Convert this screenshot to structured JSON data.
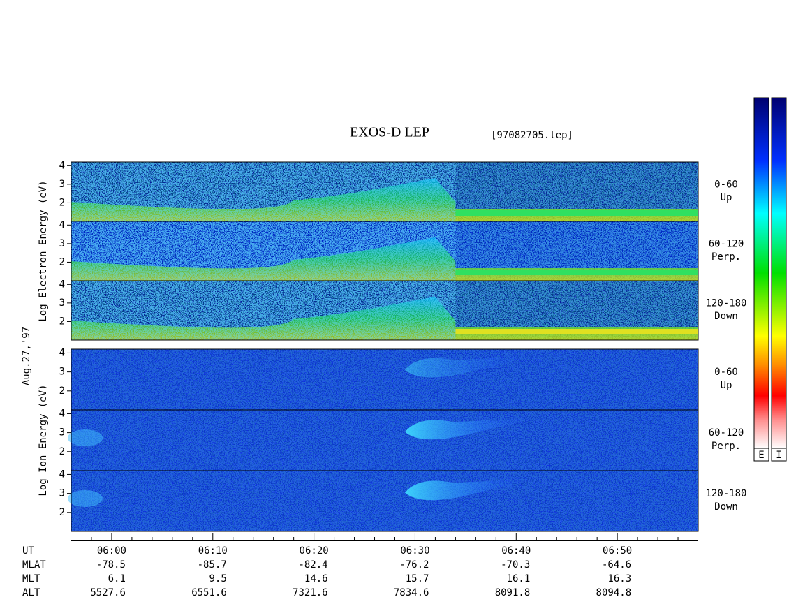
{
  "chart_data": {
    "type": "spectrogram",
    "title": "EXOS-D LEP",
    "subtitle": "[97082705.lep]",
    "date_label": "Aug.27,'97",
    "x_axis_label": "UT",
    "xlim": [
      356,
      418
    ],
    "xticks": [
      {
        "value": 360,
        "label": "06:00"
      },
      {
        "value": 370,
        "label": "06:10"
      },
      {
        "value": 380,
        "label": "06:20"
      },
      {
        "value": 390,
        "label": "06:30"
      },
      {
        "value": 400,
        "label": "06:40"
      },
      {
        "value": 410,
        "label": "06:50"
      }
    ],
    "minor_xticks": [
      358,
      362,
      364,
      366,
      368,
      372,
      374,
      376,
      378,
      382,
      384,
      386,
      388,
      392,
      394,
      396,
      398,
      402,
      404,
      406,
      408,
      412,
      414,
      416
    ],
    "ylim": [
      1,
      4.2
    ],
    "yticks": [
      2,
      3,
      4
    ],
    "groups": [
      {
        "ylabel": "Log Electron Energy (eV)",
        "panels": [
          {
            "label": "0-60",
            "sublabel": "Up"
          },
          {
            "label": "60-120",
            "sublabel": "Perp."
          },
          {
            "label": "120-180",
            "sublabel": "Down"
          }
        ]
      },
      {
        "ylabel": "Log Ion Energy (eV)",
        "panels": [
          {
            "label": "0-60",
            "sublabel": "Up"
          },
          {
            "label": "60-120",
            "sublabel": "Perp."
          },
          {
            "label": "120-180",
            "sublabel": "Down"
          }
        ]
      }
    ],
    "ephemeris": [
      {
        "name": "MLAT",
        "values": [
          -78.5,
          -85.7,
          -82.4,
          -76.2,
          -70.3,
          -64.6
        ]
      },
      {
        "name": "MLT",
        "values": [
          6.1,
          9.5,
          14.6,
          15.7,
          16.1,
          16.3
        ]
      },
      {
        "name": "ALT",
        "values": [
          5527.6,
          6551.6,
          7321.6,
          7834.6,
          8091.8,
          8094.8
        ]
      }
    ],
    "colorbar_labels": [
      "E",
      "I"
    ]
  }
}
